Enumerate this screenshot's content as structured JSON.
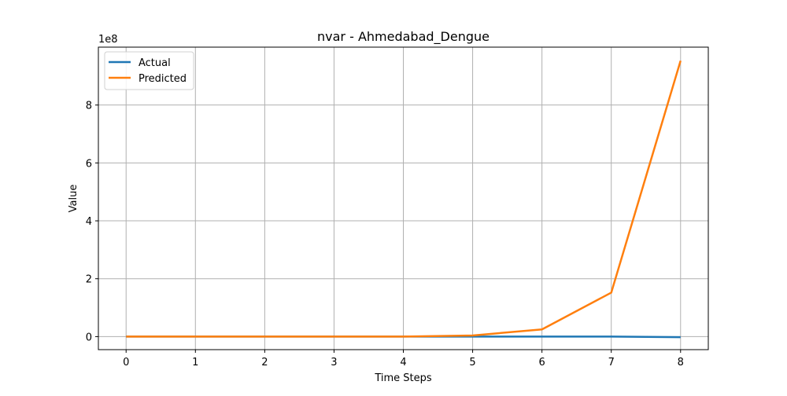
{
  "chart_data": {
    "type": "line",
    "title": "nvar - Ahmedabad_Dengue",
    "xlabel": "Time Steps",
    "ylabel": "Value",
    "y_offset_label": "1e8",
    "x": [
      0,
      1,
      2,
      3,
      4,
      5,
      6,
      7,
      8
    ],
    "x_tick_labels": [
      "0",
      "1",
      "2",
      "3",
      "4",
      "5",
      "6",
      "7",
      "8"
    ],
    "y_tick_values": [
      0,
      200000000,
      400000000,
      600000000,
      800000000
    ],
    "y_tick_labels": [
      "0",
      "2",
      "4",
      "6",
      "8"
    ],
    "xlim": [
      -0.4,
      8.4
    ],
    "ylim": [
      -45000000,
      1000000000
    ],
    "grid": true,
    "legend_placement": "top-left",
    "series": [
      {
        "name": "Actual",
        "color": "#1f77b4",
        "values": [
          0,
          0,
          0,
          0,
          0,
          0,
          0,
          0,
          -2000000
        ]
      },
      {
        "name": "Predicted",
        "color": "#ff7f0e",
        "values": [
          0,
          0,
          0,
          0,
          0,
          4000000,
          25000000,
          152000000,
          953000000
        ]
      }
    ]
  }
}
